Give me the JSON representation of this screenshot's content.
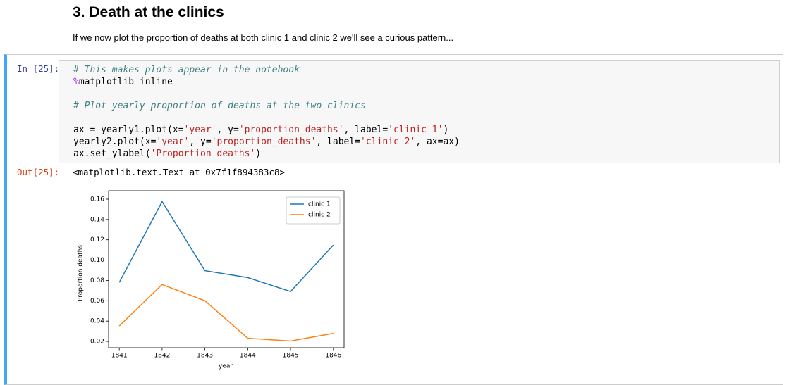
{
  "header": {
    "title": "3. Death at the clinics"
  },
  "intro": "If we now plot the proportion of deaths at both clinic 1 and clinic 2 we'll see a curious pattern...",
  "cell": {
    "in_prompt": "In [25]:",
    "code": [
      [
        {
          "text": "# This makes plots appear in the notebook",
          "kind": "comment"
        }
      ],
      [
        {
          "text": "%",
          "kind": "magic"
        },
        {
          "text": "matplotlib inline",
          "kind": "plain"
        }
      ],
      [],
      [
        {
          "text": "# Plot yearly proportion of deaths at the two clinics",
          "kind": "comment"
        }
      ],
      [],
      [
        {
          "text": "ax = yearly1.plot(x=",
          "kind": "plain"
        },
        {
          "text": "'year'",
          "kind": "string"
        },
        {
          "text": ", y=",
          "kind": "plain"
        },
        {
          "text": "'proportion_deaths'",
          "kind": "string"
        },
        {
          "text": ", label=",
          "kind": "plain"
        },
        {
          "text": "'clinic 1'",
          "kind": "string"
        },
        {
          "text": ")",
          "kind": "plain"
        }
      ],
      [
        {
          "text": "yearly2.plot(x=",
          "kind": "plain"
        },
        {
          "text": "'year'",
          "kind": "string"
        },
        {
          "text": ", y=",
          "kind": "plain"
        },
        {
          "text": "'proportion_deaths'",
          "kind": "string"
        },
        {
          "text": ", label=",
          "kind": "plain"
        },
        {
          "text": "'clinic 2'",
          "kind": "string"
        },
        {
          "text": ", ax=ax)",
          "kind": "plain"
        }
      ],
      [
        {
          "text": "ax.set_ylabel(",
          "kind": "plain"
        },
        {
          "text": "'Proportion deaths'",
          "kind": "string"
        },
        {
          "text": ")",
          "kind": "plain"
        }
      ]
    ],
    "out_prompt": "Out[25]:",
    "output_text": "<matplotlib.text.Text at 0x7f1f894383c8>"
  },
  "chart_data": {
    "type": "line",
    "x_label": "year",
    "y_label": "Proportion deaths",
    "x": [
      1841,
      1842,
      1843,
      1844,
      1845,
      1846
    ],
    "series": [
      {
        "name": "clinic 1",
        "color": "#1f77b4",
        "values": [
          0.0781,
          0.1576,
          0.0896,
          0.0828,
          0.0691,
          0.1149
        ]
      },
      {
        "name": "clinic 2",
        "color": "#ff7f0e",
        "values": [
          0.0352,
          0.076,
          0.06,
          0.0231,
          0.0204,
          0.0279
        ]
      }
    ],
    "xlim": [
      1840.75,
      1846.25
    ],
    "ylim": [
      0.0138,
      0.1683
    ],
    "xticks": [
      1841,
      1842,
      1843,
      1844,
      1845,
      1846
    ],
    "yticks": [
      0.02,
      0.04,
      0.06,
      0.08,
      {
        "value": 0.1,
        "label": "0.10"
      },
      0.12,
      0.14,
      0.16
    ],
    "legend": "upper right",
    "grid": false
  }
}
